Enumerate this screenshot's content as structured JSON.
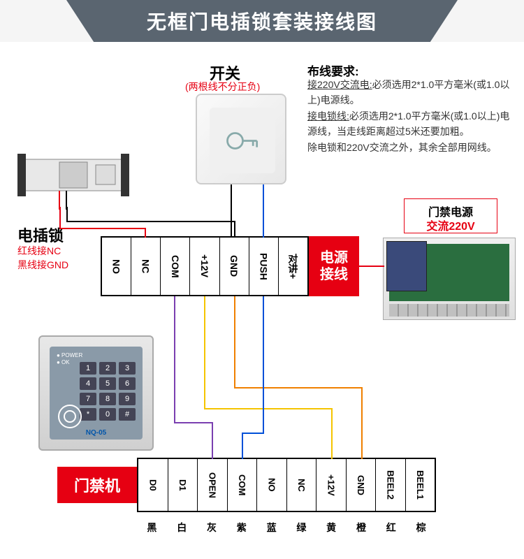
{
  "header": {
    "title": "无框门电插锁套装接线图"
  },
  "switch": {
    "label": "开关",
    "sub": "(两根线不分正负)"
  },
  "requirements": {
    "title": "布线要求:",
    "line1a": "接220V交流电:",
    "line1b": "必须选用2*1.0平方毫米(或1.0以上)电源线。",
    "line2a": "接电锁线:",
    "line2b": "必须选用2*1.0平方毫米(或1.0以上)电源线，当走线距离超过5米还要加粗。",
    "line3": "除电锁和220V交流之外，其余全部用网线。"
  },
  "lock": {
    "label": "电插锁",
    "sub1": "红线接NC",
    "sub2": "黑线接GND"
  },
  "power": {
    "label1": "门禁电源",
    "label2": "交流220V"
  },
  "tb1": {
    "label": "电源\n接线",
    "pins": [
      "NO",
      "NC",
      "COM",
      "+12V",
      "GND",
      "PUSH",
      "对讲+"
    ]
  },
  "tb2": {
    "label": "门禁机",
    "pins": [
      "D0",
      "D1",
      "OPEN",
      "COM",
      "NO",
      "NC",
      "+12V",
      "GND",
      "BEEL2",
      "BEEL1"
    ],
    "colors": [
      "黑",
      "白",
      "灰",
      "紫",
      "蓝",
      "绿",
      "黄",
      "橙",
      "红",
      "棕"
    ]
  },
  "keypad": {
    "keys": [
      "1",
      "2",
      "3",
      "4",
      "5",
      "6",
      "7",
      "8",
      "9",
      "*",
      "0",
      "#"
    ],
    "model": "NQ-05"
  },
  "wires": {
    "lock_red": "#e60012",
    "lock_black": "#000000",
    "switch_black": "#000000",
    "switch_blue": "#0050d8",
    "pwr_red": "#e60012",
    "kp_yellow": "#f5c400",
    "kp_purple": "#7a3fb0",
    "kp_orange": "#f08000",
    "kp_blue": "#0050d8"
  }
}
